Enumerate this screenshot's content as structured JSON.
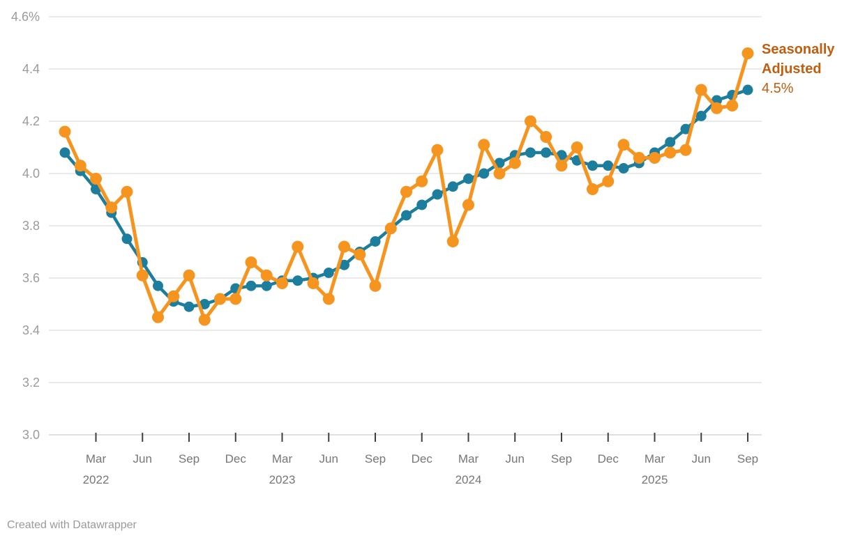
{
  "chart_data": {
    "type": "line",
    "title": "",
    "grid": true,
    "legend_position": "direct-label-right",
    "categories": [
      "Jan 2022",
      "Feb 2022",
      "Mar 2022",
      "Apr 2022",
      "May 2022",
      "Jun 2022",
      "Jul 2022",
      "Aug 2022",
      "Sep 2022",
      "Oct 2022",
      "Nov 2022",
      "Dec 2022",
      "Jan 2023",
      "Feb 2023",
      "Mar 2023",
      "Apr 2023",
      "May 2023",
      "Jun 2023",
      "Jul 2023",
      "Aug 2023",
      "Sep 2023",
      "Oct 2023",
      "Nov 2023",
      "Dec 2023",
      "Jan 2024",
      "Feb 2024",
      "Mar 2024",
      "Apr 2024",
      "May 2024",
      "Jun 2024",
      "Jul 2024",
      "Aug 2024",
      "Sep 2024",
      "Oct 2024",
      "Nov 2024",
      "Dec 2024",
      "Jan 2025",
      "Feb 2025",
      "Mar 2025",
      "Apr 2025",
      "May 2025",
      "Jun 2025",
      "Jul 2025",
      "Aug 2025",
      "Sep 2025"
    ],
    "series": [
      {
        "id": "series-blue-trend",
        "name": "",
        "color": "#1D7D9C",
        "dot_radius": 7.5,
        "line_width": 4.5,
        "values": [
          4.08,
          4.01,
          3.94,
          3.85,
          3.75,
          3.66,
          3.57,
          3.51,
          3.49,
          3.5,
          3.52,
          3.56,
          3.57,
          3.57,
          3.59,
          3.59,
          3.6,
          3.62,
          3.65,
          3.7,
          3.74,
          3.79,
          3.84,
          3.88,
          3.92,
          3.95,
          3.98,
          4.0,
          4.04,
          4.07,
          4.08,
          4.08,
          4.07,
          4.05,
          4.03,
          4.03,
          4.02,
          4.04,
          4.08,
          4.12,
          4.17,
          4.22,
          4.28,
          4.3,
          4.32
        ]
      },
      {
        "id": "series-seasonally-adjusted",
        "name": "Seasonally Adjusted",
        "color": "#F5941E",
        "dot_radius": 8.5,
        "line_width": 5,
        "values": [
          4.16,
          4.03,
          3.98,
          3.87,
          3.93,
          3.61,
          3.45,
          3.53,
          3.61,
          3.44,
          3.52,
          3.52,
          3.66,
          3.61,
          3.58,
          3.72,
          3.58,
          3.52,
          3.72,
          3.69,
          3.57,
          3.79,
          3.93,
          3.97,
          4.09,
          3.74,
          3.88,
          4.11,
          4.0,
          4.04,
          4.2,
          4.14,
          4.03,
          4.1,
          3.94,
          3.97,
          4.11,
          4.06,
          4.06,
          4.08,
          4.09,
          4.32,
          4.25,
          4.26,
          4.46
        ]
      }
    ],
    "y_axis": {
      "min": 3.0,
      "max": 4.6,
      "step": 0.2,
      "ticks": [
        {
          "value": 4.6,
          "label": "4.6%"
        },
        {
          "value": 4.4,
          "label": "4.4"
        },
        {
          "value": 4.2,
          "label": "4.2"
        },
        {
          "value": 4.0,
          "label": "4.0"
        },
        {
          "value": 3.8,
          "label": "3.8"
        },
        {
          "value": 3.6,
          "label": "3.6"
        },
        {
          "value": 3.4,
          "label": "3.4"
        },
        {
          "value": 3.2,
          "label": "3.2"
        },
        {
          "value": 3.0,
          "label": "3.0"
        }
      ]
    },
    "x_axis": {
      "ticks": [
        {
          "index": 2,
          "month": "Mar",
          "year": "2022"
        },
        {
          "index": 5,
          "month": "Jun"
        },
        {
          "index": 8,
          "month": "Sep"
        },
        {
          "index": 11,
          "month": "Dec"
        },
        {
          "index": 14,
          "month": "Mar",
          "year": "2023"
        },
        {
          "index": 17,
          "month": "Jun"
        },
        {
          "index": 20,
          "month": "Sep"
        },
        {
          "index": 23,
          "month": "Dec"
        },
        {
          "index": 26,
          "month": "Mar",
          "year": "2024"
        },
        {
          "index": 29,
          "month": "Jun"
        },
        {
          "index": 32,
          "month": "Sep"
        },
        {
          "index": 35,
          "month": "Dec"
        },
        {
          "index": 38,
          "month": "Mar",
          "year": "2025"
        },
        {
          "index": 41,
          "month": "Jun"
        },
        {
          "index": 44,
          "month": "Sep"
        }
      ]
    },
    "colors": {
      "gridline": "#e3e3e3",
      "axis_baseline": "#d6d6d6",
      "tick_mark": "#3f3f3f",
      "y_label": "#9b9b9b",
      "x_label": "#767676",
      "annotation": "#C05D0E"
    }
  },
  "annotation": {
    "line1": "Seasonally",
    "line2": "Adjusted",
    "value": "4.5%"
  },
  "footer": {
    "text": "Created with Datawrapper"
  }
}
